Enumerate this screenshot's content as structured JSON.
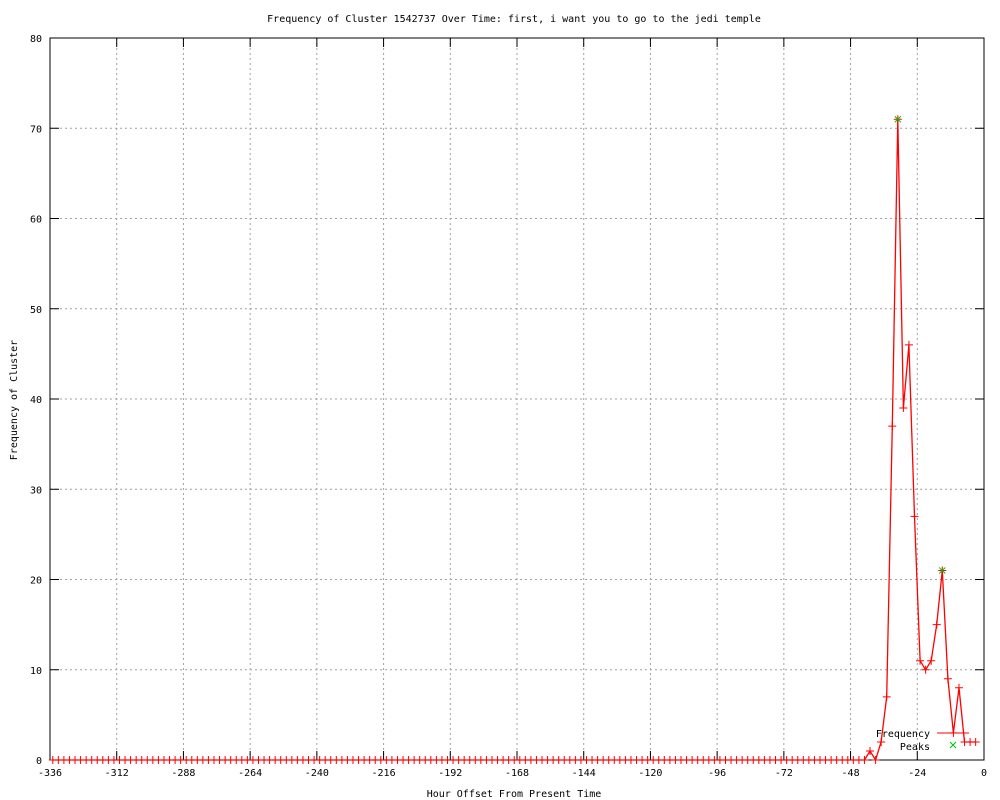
{
  "chart_data": {
    "type": "line",
    "title": "Frequency of Cluster 1542737 Over Time: first, i want you to go to the jedi temple",
    "xlabel": "Hour Offset From Present Time",
    "ylabel": "Frequency of Cluster",
    "xlim": [
      -336,
      0
    ],
    "ylim": [
      0,
      80
    ],
    "xticks": [
      -336,
      -312,
      -288,
      -264,
      -240,
      -216,
      -192,
      -168,
      -144,
      -120,
      -96,
      -72,
      -48,
      -24,
      0
    ],
    "yticks": [
      0,
      10,
      20,
      30,
      40,
      50,
      60,
      70,
      80
    ],
    "grid": true,
    "legend_position": "bottom-right",
    "series": [
      {
        "name": "Frequency",
        "color": "#ff0000",
        "style": "linespoints",
        "x": [
          -335,
          -333,
          -331,
          -329,
          -327,
          -325,
          -323,
          -321,
          -319,
          -317,
          -315,
          -313,
          -311,
          -309,
          -307,
          -305,
          -303,
          -301,
          -299,
          -297,
          -295,
          -293,
          -291,
          -289,
          -287,
          -285,
          -283,
          -281,
          -279,
          -277,
          -275,
          -273,
          -271,
          -269,
          -267,
          -265,
          -263,
          -261,
          -259,
          -257,
          -255,
          -253,
          -251,
          -249,
          -247,
          -245,
          -243,
          -241,
          -239,
          -237,
          -235,
          -233,
          -231,
          -229,
          -227,
          -225,
          -223,
          -221,
          -219,
          -217,
          -215,
          -213,
          -211,
          -209,
          -207,
          -205,
          -203,
          -201,
          -199,
          -197,
          -195,
          -193,
          -191,
          -189,
          -187,
          -185,
          -183,
          -181,
          -179,
          -177,
          -175,
          -173,
          -171,
          -169,
          -167,
          -165,
          -163,
          -161,
          -159,
          -157,
          -155,
          -153,
          -151,
          -149,
          -147,
          -145,
          -143,
          -141,
          -139,
          -137,
          -135,
          -133,
          -131,
          -129,
          -127,
          -125,
          -123,
          -121,
          -119,
          -117,
          -115,
          -113,
          -111,
          -109,
          -107,
          -105,
          -103,
          -101,
          -99,
          -97,
          -95,
          -93,
          -91,
          -89,
          -87,
          -85,
          -83,
          -81,
          -79,
          -77,
          -75,
          -73,
          -71,
          -69,
          -67,
          -65,
          -63,
          -61,
          -59,
          -57,
          -55,
          -53,
          -51,
          -49,
          -47,
          -45,
          -43,
          -41,
          -39,
          -37,
          -35,
          -33,
          -31,
          -29,
          -27,
          -25,
          -23,
          -21,
          -19,
          -17,
          -15,
          -13,
          -11,
          -9,
          -7,
          -5,
          -3
        ],
        "y": [
          0,
          0,
          0,
          0,
          0,
          0,
          0,
          0,
          0,
          0,
          0,
          0,
          0,
          0,
          0,
          0,
          0,
          0,
          0,
          0,
          0,
          0,
          0,
          0,
          0,
          0,
          0,
          0,
          0,
          0,
          0,
          0,
          0,
          0,
          0,
          0,
          0,
          0,
          0,
          0,
          0,
          0,
          0,
          0,
          0,
          0,
          0,
          0,
          0,
          0,
          0,
          0,
          0,
          0,
          0,
          0,
          0,
          0,
          0,
          0,
          0,
          0,
          0,
          0,
          0,
          0,
          0,
          0,
          0,
          0,
          0,
          0,
          0,
          0,
          0,
          0,
          0,
          0,
          0,
          0,
          0,
          0,
          0,
          0,
          0,
          0,
          0,
          0,
          0,
          0,
          0,
          0,
          0,
          0,
          0,
          0,
          0,
          0,
          0,
          0,
          0,
          0,
          0,
          0,
          0,
          0,
          0,
          0,
          0,
          0,
          0,
          0,
          0,
          0,
          0,
          0,
          0,
          0,
          0,
          0,
          0,
          0,
          0,
          0,
          0,
          0,
          0,
          0,
          0,
          0,
          0,
          0,
          0,
          0,
          0,
          0,
          0,
          0,
          0,
          0,
          0,
          0,
          0,
          0,
          0,
          0,
          0,
          1,
          0,
          2,
          7,
          37,
          71,
          39,
          46,
          27,
          11,
          10,
          11,
          15,
          21,
          9,
          3,
          8,
          2,
          2,
          2
        ]
      },
      {
        "name": "Peaks",
        "color": "#00c000",
        "style": "points",
        "x": [
          -31,
          -15
        ],
        "y": [
          71,
          21
        ]
      }
    ]
  }
}
